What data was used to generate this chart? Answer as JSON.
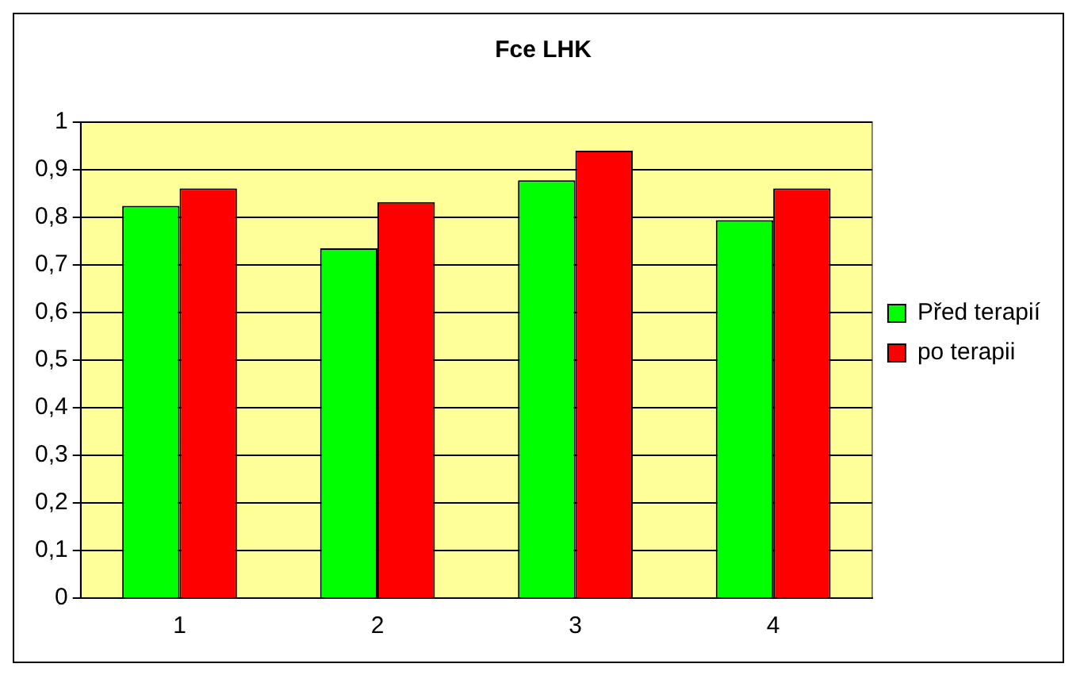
{
  "chart_data": {
    "type": "bar",
    "title": "Fce LHK",
    "categories": [
      "1",
      "2",
      "3",
      "4"
    ],
    "series": [
      {
        "name": "Před terapií",
        "color": "#00ff00",
        "values": [
          0.824,
          0.735,
          0.878,
          0.794
        ]
      },
      {
        "name": "po terapii",
        "color": "#ff0000",
        "values": [
          0.861,
          0.832,
          0.94,
          0.861
        ]
      }
    ],
    "ylim": [
      0,
      1
    ],
    "yticks": [
      0,
      {
        "value": 0.1,
        "label": "0,1"
      },
      {
        "value": 0.2,
        "label": "0,2"
      },
      {
        "value": 0.3,
        "label": "0,3"
      },
      {
        "value": 0.4,
        "label": "0,4"
      },
      {
        "value": 0.5,
        "label": "0,5"
      },
      {
        "value": 0.6,
        "label": "0,6"
      },
      {
        "value": 0.7,
        "label": "0,7"
      },
      {
        "value": 0.8,
        "label": "0,8"
      },
      {
        "value": 0.9,
        "label": "0,9"
      },
      1
    ],
    "grid": "y",
    "legend": "right"
  }
}
